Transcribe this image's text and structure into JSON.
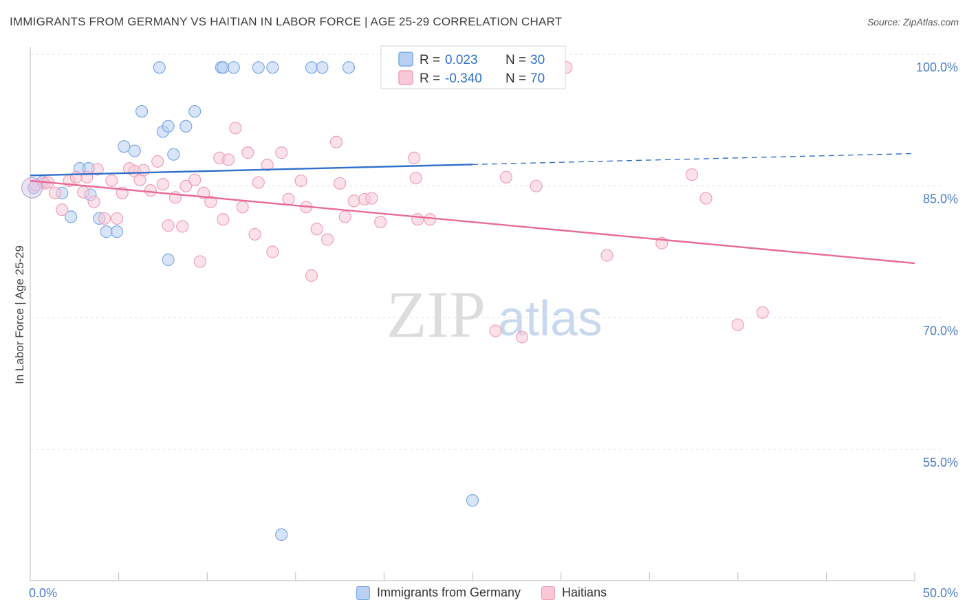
{
  "header": {
    "title": "IMMIGRANTS FROM GERMANY VS HAITIAN IN LABOR FORCE | AGE 25-29 CORRELATION CHART",
    "source": "Source: ZipAtlas.com"
  },
  "watermark": {
    "zip": "ZIP",
    "atlas": "atlas"
  },
  "chart_data": {
    "type": "scatter",
    "ylabel": "In Labor Force | Age 25-29",
    "xlim": [
      0,
      50
    ],
    "ylim": [
      40,
      102
    ],
    "x_tick_labels": [
      "0.0%",
      "50.0%"
    ],
    "y_ticks": [
      {
        "value": 100,
        "label": "100.0%"
      },
      {
        "value": 85,
        "label": "85.0%"
      },
      {
        "value": 70,
        "label": "70.0%"
      },
      {
        "value": 55,
        "label": "55.0%"
      }
    ],
    "grid": true,
    "legend_position": "top-center",
    "series": [
      {
        "name": "Immigrants from Germany",
        "color": "#7aa8e8",
        "fill": "#b8d0f4",
        "line_color": "#2f6fcc",
        "stats": {
          "r_label": "R =",
          "r": " 0.023",
          "n_label": "N =",
          "n": "30"
        },
        "trend": {
          "x0": 0,
          "y0": 86.2,
          "x1": 50,
          "y1": 88.7,
          "solid_until": 25
        },
        "points": [
          [
            0.2,
            84.8
          ],
          [
            0.7,
            85.5
          ],
          [
            1.8,
            84.2
          ],
          [
            2.3,
            81.5
          ],
          [
            2.8,
            87.0
          ],
          [
            3.3,
            87.0
          ],
          [
            3.4,
            84.0
          ],
          [
            3.9,
            81.3
          ],
          [
            4.3,
            79.8
          ],
          [
            4.9,
            79.8
          ],
          [
            5.3,
            89.5
          ],
          [
            5.9,
            89.0
          ],
          [
            6.3,
            93.5
          ],
          [
            7.5,
            91.2
          ],
          [
            7.3,
            98.5
          ],
          [
            7.8,
            76.6
          ],
          [
            7.8,
            91.8
          ],
          [
            8.1,
            88.6
          ],
          [
            8.8,
            91.8
          ],
          [
            9.3,
            93.5
          ],
          [
            10.8,
            98.5
          ],
          [
            10.9,
            98.5
          ],
          [
            11.5,
            98.5
          ],
          [
            12.9,
            98.5
          ],
          [
            13.7,
            98.5
          ],
          [
            15.9,
            98.5
          ],
          [
            16.5,
            98.5
          ],
          [
            18.0,
            98.5
          ],
          [
            14.2,
            45.3
          ],
          [
            25.0,
            49.2
          ]
        ]
      },
      {
        "name": "Haitians",
        "color": "#f0a0b8",
        "fill": "#f8c8d6",
        "line_color": "#e86b93",
        "stats": {
          "r_label": "R =",
          "r": "-0.340",
          "n_label": "N =",
          "n": "70"
        },
        "trend": {
          "x0": 0,
          "y0": 85.6,
          "x1": 50,
          "y1": 76.2
        },
        "points": [
          [
            0.8,
            85.3
          ],
          [
            1.4,
            84.2
          ],
          [
            1.8,
            82.3
          ],
          [
            2.2,
            85.6
          ],
          [
            2.6,
            86.0
          ],
          [
            3.0,
            84.3
          ],
          [
            3.2,
            86.0
          ],
          [
            3.6,
            83.2
          ],
          [
            3.8,
            86.9
          ],
          [
            4.2,
            81.3
          ],
          [
            4.6,
            85.6
          ],
          [
            4.9,
            81.3
          ],
          [
            5.2,
            84.2
          ],
          [
            5.6,
            87.0
          ],
          [
            5.9,
            86.7
          ],
          [
            6.2,
            85.7
          ],
          [
            6.4,
            86.8
          ],
          [
            6.8,
            84.5
          ],
          [
            7.2,
            87.8
          ],
          [
            7.5,
            85.2
          ],
          [
            7.8,
            80.5
          ],
          [
            8.2,
            83.7
          ],
          [
            8.6,
            80.4
          ],
          [
            8.8,
            85.0
          ],
          [
            9.3,
            85.7
          ],
          [
            9.6,
            76.4
          ],
          [
            9.8,
            84.2
          ],
          [
            10.2,
            83.2
          ],
          [
            10.7,
            88.2
          ],
          [
            10.9,
            81.2
          ],
          [
            11.2,
            88.0
          ],
          [
            11.6,
            91.6
          ],
          [
            12.0,
            82.6
          ],
          [
            12.3,
            88.8
          ],
          [
            12.7,
            79.5
          ],
          [
            12.9,
            85.4
          ],
          [
            13.4,
            87.4
          ],
          [
            13.7,
            77.5
          ],
          [
            14.2,
            88.8
          ],
          [
            14.6,
            83.5
          ],
          [
            15.3,
            85.6
          ],
          [
            15.6,
            82.6
          ],
          [
            15.9,
            74.8
          ],
          [
            16.2,
            80.1
          ],
          [
            16.8,
            78.9
          ],
          [
            17.5,
            85.3
          ],
          [
            17.8,
            81.5
          ],
          [
            18.3,
            83.3
          ],
          [
            18.9,
            83.5
          ],
          [
            19.3,
            83.6
          ],
          [
            19.8,
            80.9
          ],
          [
            21.7,
            88.2
          ],
          [
            21.8,
            85.9
          ],
          [
            21.9,
            81.2
          ],
          [
            22.6,
            81.2
          ],
          [
            26.3,
            68.5
          ],
          [
            26.9,
            86.0
          ],
          [
            27.8,
            67.8
          ],
          [
            28.6,
            85.0
          ],
          [
            30.3,
            98.5
          ],
          [
            32.6,
            77.1
          ],
          [
            35.7,
            78.5
          ],
          [
            37.4,
            86.3
          ],
          [
            38.2,
            83.6
          ],
          [
            40.0,
            69.2
          ],
          [
            41.4,
            70.6
          ],
          [
            0.3,
            85.1
          ],
          [
            1.0,
            85.4
          ],
          [
            17.3,
            90.0
          ],
          [
            25.6,
            98.4
          ]
        ]
      }
    ]
  }
}
